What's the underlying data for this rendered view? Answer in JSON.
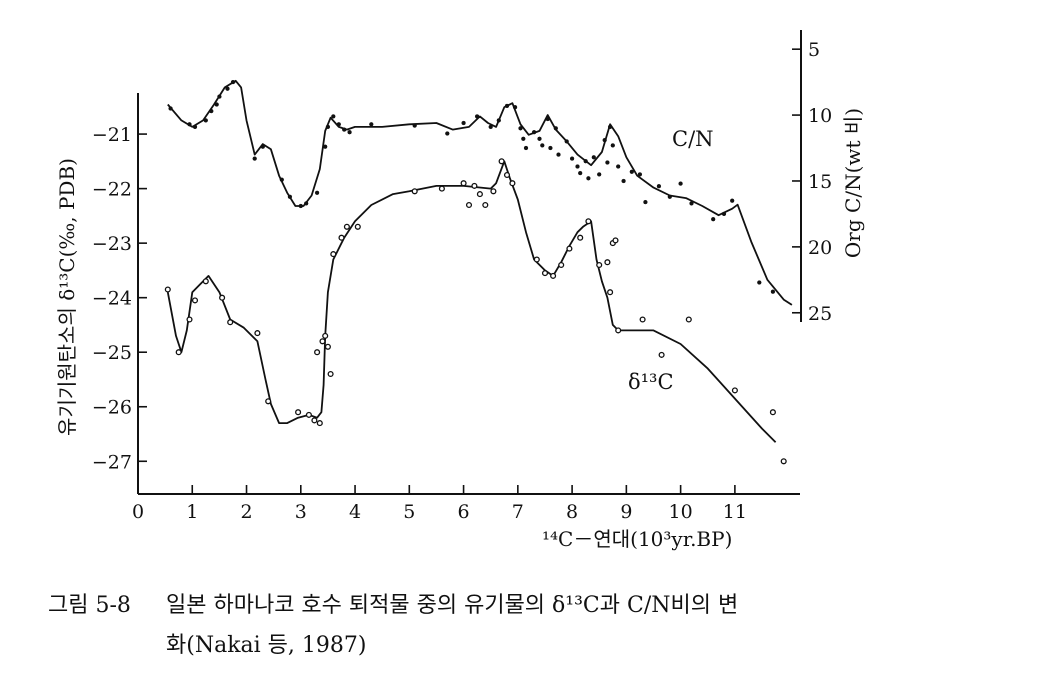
{
  "chart_data": {
    "type": "line",
    "x": {
      "label": "¹⁴C－연대(10³yr.BP)",
      "ticks": [
        0,
        1,
        2,
        3,
        4,
        5,
        6,
        7,
        8,
        9,
        10,
        11
      ],
      "range": [
        0,
        12.2
      ]
    },
    "y_left": {
      "label": "유기기원탄소의 δ¹³C(‰, PDB)",
      "ticks": [
        -21,
        -22,
        -23,
        -24,
        -25,
        -26,
        -27
      ],
      "range": [
        -27.6,
        -20.1
      ]
    },
    "y_right": {
      "label": "Org C/N(wt 비)",
      "ticks": [
        5,
        10,
        15,
        20,
        25
      ],
      "range": [
        25.7,
        4
      ]
    },
    "series": [
      {
        "name": "C/N",
        "axis": "right",
        "line": [
          [
            0.55,
            9.2
          ],
          [
            0.8,
            10.4
          ],
          [
            1.0,
            10.9
          ],
          [
            1.2,
            10.4
          ],
          [
            1.4,
            9.2
          ],
          [
            1.6,
            7.9
          ],
          [
            1.8,
            7.4
          ],
          [
            1.9,
            7.9
          ],
          [
            2.0,
            10.4
          ],
          [
            2.15,
            13.0
          ],
          [
            2.3,
            12.2
          ],
          [
            2.45,
            12.6
          ],
          [
            2.6,
            14.6
          ],
          [
            2.75,
            15.9
          ],
          [
            2.9,
            16.9
          ],
          [
            3.05,
            16.9
          ],
          [
            3.2,
            16.1
          ],
          [
            3.35,
            14.1
          ],
          [
            3.45,
            11.2
          ],
          [
            3.55,
            10.2
          ],
          [
            3.7,
            10.9
          ],
          [
            3.85,
            11.1
          ],
          [
            4.0,
            10.9
          ],
          [
            4.5,
            10.9
          ],
          [
            5.0,
            10.7
          ],
          [
            5.5,
            10.6
          ],
          [
            5.8,
            11.1
          ],
          [
            6.1,
            10.9
          ],
          [
            6.3,
            10.1
          ],
          [
            6.45,
            10.6
          ],
          [
            6.6,
            10.9
          ],
          [
            6.75,
            9.4
          ],
          [
            6.9,
            9.1
          ],
          [
            7.05,
            10.7
          ],
          [
            7.2,
            11.5
          ],
          [
            7.4,
            11.2
          ],
          [
            7.55,
            10.0
          ],
          [
            7.7,
            11.1
          ],
          [
            7.9,
            12.0
          ],
          [
            8.1,
            13.0
          ],
          [
            8.35,
            13.8
          ],
          [
            8.55,
            12.8
          ],
          [
            8.7,
            10.7
          ],
          [
            8.85,
            11.6
          ],
          [
            9.0,
            13.2
          ],
          [
            9.2,
            14.6
          ],
          [
            9.5,
            15.5
          ],
          [
            9.8,
            16.1
          ],
          [
            10.1,
            16.3
          ],
          [
            10.4,
            16.9
          ],
          [
            10.7,
            17.6
          ],
          [
            10.95,
            17.1
          ],
          [
            11.05,
            16.8
          ],
          [
            11.3,
            19.6
          ],
          [
            11.6,
            22.5
          ],
          [
            11.9,
            24.0
          ],
          [
            12.05,
            24.4
          ]
        ],
        "points": [
          [
            0.6,
            9.5
          ],
          [
            0.95,
            10.7
          ],
          [
            1.05,
            10.9
          ],
          [
            1.25,
            10.4
          ],
          [
            1.35,
            9.7
          ],
          [
            1.45,
            9.2
          ],
          [
            1.5,
            8.6
          ],
          [
            1.65,
            8.0
          ],
          [
            1.75,
            7.5
          ],
          [
            2.15,
            13.3
          ],
          [
            2.3,
            12.4
          ],
          [
            2.65,
            14.9
          ],
          [
            2.8,
            16.2
          ],
          [
            3.0,
            16.9
          ],
          [
            3.1,
            16.7
          ],
          [
            3.3,
            15.9
          ],
          [
            3.45,
            12.4
          ],
          [
            3.5,
            10.9
          ],
          [
            3.6,
            10.1
          ],
          [
            3.7,
            10.7
          ],
          [
            3.8,
            11.1
          ],
          [
            3.9,
            11.3
          ],
          [
            4.3,
            10.7
          ],
          [
            5.1,
            10.8
          ],
          [
            5.7,
            11.4
          ],
          [
            6.0,
            10.6
          ],
          [
            6.25,
            10.1
          ],
          [
            6.5,
            10.9
          ],
          [
            6.65,
            10.4
          ],
          [
            6.8,
            9.3
          ],
          [
            6.95,
            9.4
          ],
          [
            7.05,
            11.0
          ],
          [
            7.1,
            11.8
          ],
          [
            7.15,
            12.5
          ],
          [
            7.3,
            11.3
          ],
          [
            7.4,
            11.8
          ],
          [
            7.45,
            12.3
          ],
          [
            7.55,
            10.3
          ],
          [
            7.6,
            12.5
          ],
          [
            7.7,
            11.0
          ],
          [
            7.75,
            13.0
          ],
          [
            7.9,
            12.0
          ],
          [
            8.0,
            13.3
          ],
          [
            8.1,
            13.9
          ],
          [
            8.15,
            14.4
          ],
          [
            8.25,
            13.5
          ],
          [
            8.3,
            14.8
          ],
          [
            8.4,
            13.2
          ],
          [
            8.5,
            14.5
          ],
          [
            8.6,
            11.9
          ],
          [
            8.65,
            13.6
          ],
          [
            8.7,
            10.9
          ],
          [
            8.75,
            12.3
          ],
          [
            8.85,
            13.9
          ],
          [
            8.95,
            15.0
          ],
          [
            9.1,
            14.3
          ],
          [
            9.25,
            14.5
          ],
          [
            9.35,
            16.6
          ],
          [
            9.6,
            15.4
          ],
          [
            9.8,
            16.2
          ],
          [
            10.0,
            15.2
          ],
          [
            10.2,
            16.7
          ],
          [
            10.6,
            17.9
          ],
          [
            10.8,
            17.5
          ],
          [
            10.95,
            16.5
          ],
          [
            11.45,
            22.7
          ],
          [
            11.7,
            23.4
          ]
        ]
      },
      {
        "name": "δ¹³C",
        "axis": "left",
        "line": [
          [
            0.55,
            -23.9
          ],
          [
            0.7,
            -24.7
          ],
          [
            0.8,
            -25.0
          ],
          [
            0.9,
            -24.6
          ],
          [
            1.0,
            -23.9
          ],
          [
            1.15,
            -23.75
          ],
          [
            1.3,
            -23.6
          ],
          [
            1.5,
            -23.9
          ],
          [
            1.7,
            -24.4
          ],
          [
            1.95,
            -24.55
          ],
          [
            2.2,
            -24.8
          ],
          [
            2.35,
            -25.5
          ],
          [
            2.45,
            -25.95
          ],
          [
            2.6,
            -26.3
          ],
          [
            2.75,
            -26.3
          ],
          [
            2.95,
            -26.2
          ],
          [
            3.15,
            -26.15
          ],
          [
            3.3,
            -26.2
          ],
          [
            3.38,
            -26.1
          ],
          [
            3.42,
            -25.6
          ],
          [
            3.45,
            -24.7
          ],
          [
            3.5,
            -23.9
          ],
          [
            3.6,
            -23.3
          ],
          [
            3.8,
            -22.9
          ],
          [
            4.0,
            -22.6
          ],
          [
            4.3,
            -22.3
          ],
          [
            4.7,
            -22.1
          ],
          [
            5.0,
            -22.05
          ],
          [
            5.5,
            -21.95
          ],
          [
            6.0,
            -21.95
          ],
          [
            6.5,
            -22.0
          ],
          [
            6.6,
            -21.9
          ],
          [
            6.75,
            -21.5
          ],
          [
            6.85,
            -21.8
          ],
          [
            7.0,
            -22.2
          ],
          [
            7.15,
            -22.8
          ],
          [
            7.3,
            -23.3
          ],
          [
            7.5,
            -23.5
          ],
          [
            7.65,
            -23.6
          ],
          [
            7.8,
            -23.35
          ],
          [
            7.95,
            -23.05
          ],
          [
            8.1,
            -22.8
          ],
          [
            8.2,
            -22.7
          ],
          [
            8.35,
            -22.6
          ],
          [
            8.45,
            -23.3
          ],
          [
            8.55,
            -23.7
          ],
          [
            8.65,
            -24.0
          ],
          [
            8.75,
            -24.5
          ],
          [
            8.85,
            -24.6
          ],
          [
            9.5,
            -24.6
          ],
          [
            10.0,
            -24.85
          ],
          [
            10.5,
            -25.3
          ],
          [
            11.0,
            -25.85
          ],
          [
            11.5,
            -26.4
          ],
          [
            11.75,
            -26.65
          ]
        ],
        "points": [
          [
            0.55,
            -23.85
          ],
          [
            0.75,
            -25.0
          ],
          [
            0.95,
            -24.4
          ],
          [
            1.05,
            -24.05
          ],
          [
            1.25,
            -23.7
          ],
          [
            1.55,
            -24.0
          ],
          [
            1.7,
            -24.45
          ],
          [
            2.2,
            -24.65
          ],
          [
            2.4,
            -25.9
          ],
          [
            2.95,
            -26.1
          ],
          [
            3.15,
            -26.15
          ],
          [
            3.25,
            -26.25
          ],
          [
            3.3,
            -25.0
          ],
          [
            3.35,
            -26.3
          ],
          [
            3.4,
            -24.8
          ],
          [
            3.45,
            -24.7
          ],
          [
            3.5,
            -24.9
          ],
          [
            3.55,
            -25.4
          ],
          [
            3.6,
            -23.2
          ],
          [
            3.75,
            -22.9
          ],
          [
            3.85,
            -22.7
          ],
          [
            4.05,
            -22.7
          ],
          [
            5.1,
            -22.05
          ],
          [
            5.6,
            -22.0
          ],
          [
            6.0,
            -21.9
          ],
          [
            6.1,
            -22.3
          ],
          [
            6.2,
            -21.95
          ],
          [
            6.3,
            -22.1
          ],
          [
            6.4,
            -22.3
          ],
          [
            6.55,
            -22.05
          ],
          [
            6.7,
            -21.5
          ],
          [
            6.8,
            -21.75
          ],
          [
            6.9,
            -21.9
          ],
          [
            7.35,
            -23.3
          ],
          [
            7.5,
            -23.55
          ],
          [
            7.65,
            -23.6
          ],
          [
            7.8,
            -23.4
          ],
          [
            7.95,
            -23.1
          ],
          [
            8.15,
            -22.9
          ],
          [
            8.3,
            -22.6
          ],
          [
            8.5,
            -23.4
          ],
          [
            8.65,
            -23.35
          ],
          [
            8.7,
            -23.9
          ],
          [
            8.75,
            -23.0
          ],
          [
            8.8,
            -22.95
          ],
          [
            8.85,
            -24.6
          ],
          [
            9.3,
            -24.4
          ],
          [
            9.65,
            -25.05
          ],
          [
            10.15,
            -24.4
          ],
          [
            11.0,
            -25.7
          ],
          [
            11.7,
            -26.1
          ],
          [
            11.9,
            -27.0
          ]
        ]
      }
    ]
  },
  "caption": {
    "number": "그림 5-8",
    "line1": "일본 하마나코 호수 퇴적물 중의 유기물의 δ¹³C과 C/N비의 변",
    "line2": "화(Nakai 등, 1987)"
  }
}
